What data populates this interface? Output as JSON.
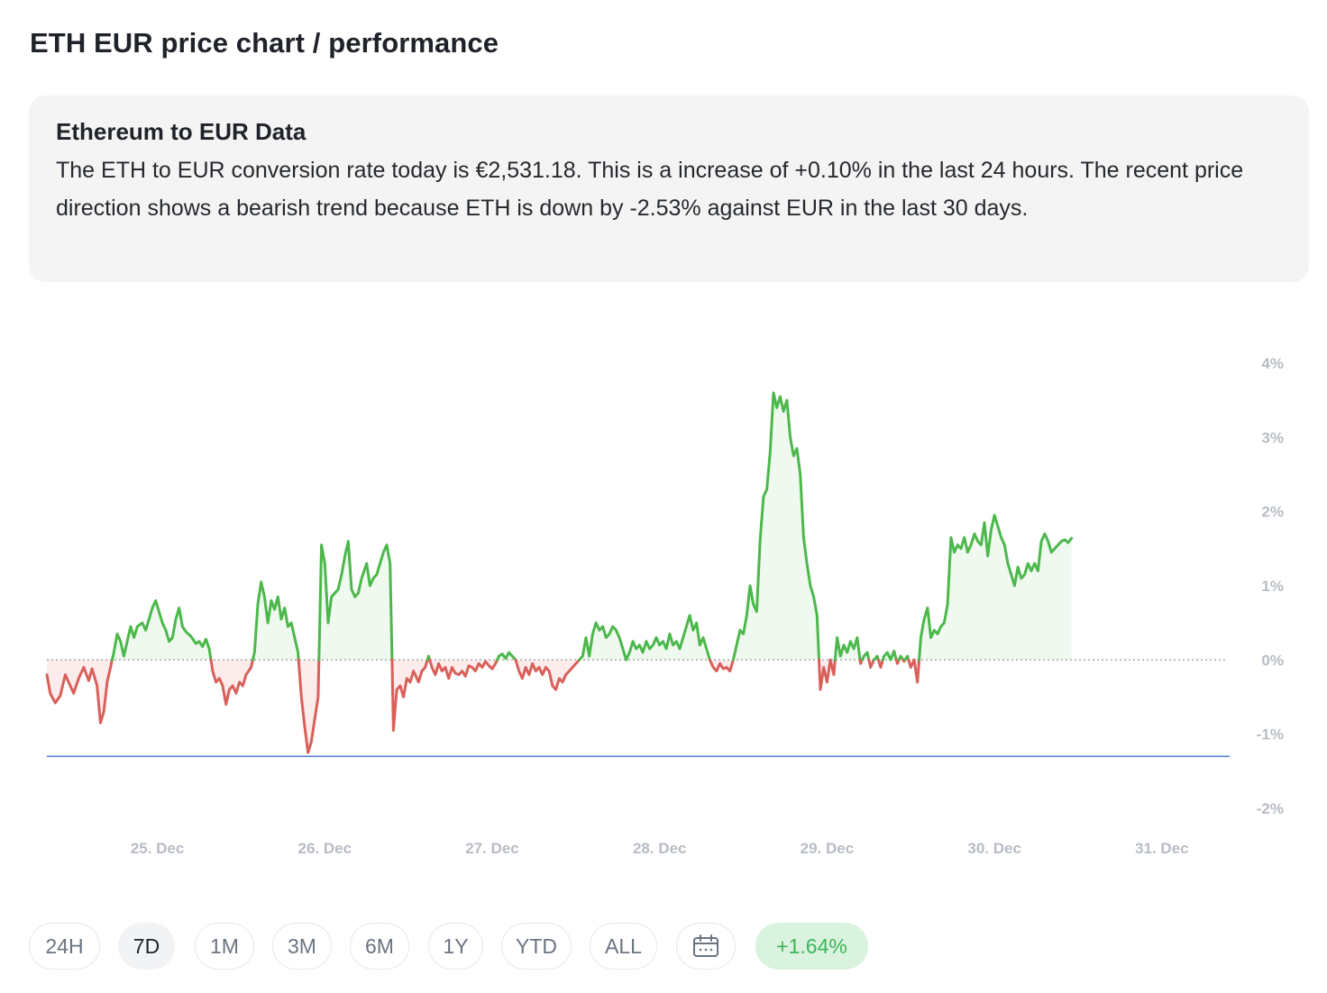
{
  "page_title": "ETH EUR price chart / performance",
  "info": {
    "title": "Ethereum to EUR Data",
    "text": "The ETH to EUR conversion rate today is €2,531.18. This is a increase of +0.10% in the last 24 hours. The recent price direction shows a bearish trend because ETH is down by -2.53% against EUR in the last 30 days."
  },
  "range_buttons": [
    {
      "label": "24H",
      "active": false
    },
    {
      "label": "7D",
      "active": true
    },
    {
      "label": "1M",
      "active": false
    },
    {
      "label": "3M",
      "active": false
    },
    {
      "label": "6M",
      "active": false
    },
    {
      "label": "1Y",
      "active": false
    },
    {
      "label": "YTD",
      "active": false
    },
    {
      "label": "ALL",
      "active": false
    }
  ],
  "calendar_icon": "calendar-icon",
  "change_badge": "+1.64%",
  "colors": {
    "positive": "#4cb84c",
    "negative": "#d9605a",
    "reference": "#4a77d4",
    "positive_fill": "#e9f7e9",
    "negative_fill": "#fbe5e4"
  },
  "chart_data": {
    "type": "area",
    "ylim": [
      -2,
      4
    ],
    "y_ticks": [
      "4%",
      "3%",
      "2%",
      "1%",
      "0%",
      "-1%",
      "-2%"
    ],
    "y_tick_values": [
      4,
      3,
      2,
      1,
      0,
      -1,
      -2
    ],
    "x_ticks": [
      "25. Dec",
      "26. Dec",
      "27. Dec",
      "28. Dec",
      "29. Dec",
      "30. Dec",
      "31. Dec"
    ],
    "x_tick_days": [
      1,
      2,
      3,
      4,
      5,
      6,
      7
    ],
    "xlim_days": [
      0.34,
      7.34
    ],
    "reference_value": -1.3,
    "series": [
      {
        "points": [
          [
            0.34,
            -0.2
          ],
          [
            0.36,
            -0.45
          ],
          [
            0.39,
            -0.58
          ],
          [
            0.42,
            -0.48
          ],
          [
            0.45,
            -0.2
          ],
          [
            0.47,
            -0.3
          ],
          [
            0.5,
            -0.45
          ],
          [
            0.53,
            -0.25
          ],
          [
            0.56,
            -0.1
          ],
          [
            0.59,
            -0.28
          ],
          [
            0.61,
            -0.12
          ],
          [
            0.64,
            -0.35
          ],
          [
            0.66,
            -0.85
          ],
          [
            0.68,
            -0.7
          ],
          [
            0.7,
            -0.3
          ],
          [
            0.72,
            -0.1
          ],
          [
            0.74,
            0.1
          ],
          [
            0.76,
            0.35
          ],
          [
            0.78,
            0.25
          ],
          [
            0.8,
            0.05
          ],
          [
            0.82,
            0.25
          ],
          [
            0.84,
            0.45
          ],
          [
            0.86,
            0.3
          ],
          [
            0.88,
            0.45
          ],
          [
            0.91,
            0.5
          ],
          [
            0.93,
            0.4
          ],
          [
            0.95,
            0.55
          ],
          [
            0.97,
            0.7
          ],
          [
            0.99,
            0.8
          ],
          [
            1.01,
            0.65
          ],
          [
            1.03,
            0.5
          ],
          [
            1.05,
            0.4
          ],
          [
            1.07,
            0.25
          ],
          [
            1.09,
            0.3
          ],
          [
            1.11,
            0.55
          ],
          [
            1.13,
            0.7
          ],
          [
            1.15,
            0.45
          ],
          [
            1.17,
            0.38
          ],
          [
            1.2,
            0.32
          ],
          [
            1.23,
            0.22
          ],
          [
            1.25,
            0.25
          ],
          [
            1.27,
            0.18
          ],
          [
            1.29,
            0.28
          ],
          [
            1.31,
            0.15
          ],
          [
            1.33,
            -0.15
          ],
          [
            1.35,
            -0.3
          ],
          [
            1.37,
            -0.25
          ],
          [
            1.39,
            -0.35
          ],
          [
            1.41,
            -0.6
          ],
          [
            1.43,
            -0.4
          ],
          [
            1.45,
            -0.35
          ],
          [
            1.47,
            -0.45
          ],
          [
            1.49,
            -0.3
          ],
          [
            1.51,
            -0.35
          ],
          [
            1.53,
            -0.2
          ],
          [
            1.56,
            -0.1
          ],
          [
            1.58,
            0.1
          ],
          [
            1.6,
            0.75
          ],
          [
            1.62,
            1.05
          ],
          [
            1.64,
            0.85
          ],
          [
            1.66,
            0.5
          ],
          [
            1.68,
            0.8
          ],
          [
            1.7,
            0.68
          ],
          [
            1.72,
            0.85
          ],
          [
            1.74,
            0.55
          ],
          [
            1.76,
            0.7
          ],
          [
            1.78,
            0.45
          ],
          [
            1.8,
            0.5
          ],
          [
            1.82,
            0.3
          ],
          [
            1.84,
            0.1
          ],
          [
            1.86,
            -0.5
          ],
          [
            1.88,
            -0.9
          ],
          [
            1.9,
            -1.25
          ],
          [
            1.92,
            -1.1
          ],
          [
            1.94,
            -0.8
          ],
          [
            1.96,
            -0.5
          ],
          [
            1.98,
            1.55
          ],
          [
            2.0,
            1.3
          ],
          [
            2.02,
            0.5
          ],
          [
            2.04,
            0.85
          ],
          [
            2.06,
            0.9
          ],
          [
            2.08,
            0.95
          ],
          [
            2.1,
            1.15
          ],
          [
            2.12,
            1.4
          ],
          [
            2.14,
            1.6
          ],
          [
            2.16,
            0.95
          ],
          [
            2.18,
            0.85
          ],
          [
            2.2,
            0.9
          ],
          [
            2.22,
            1.1
          ],
          [
            2.25,
            1.3
          ],
          [
            2.27,
            1.0
          ],
          [
            2.29,
            1.1
          ],
          [
            2.31,
            1.15
          ],
          [
            2.33,
            1.3
          ],
          [
            2.35,
            1.45
          ],
          [
            2.37,
            1.55
          ],
          [
            2.39,
            1.3
          ],
          [
            2.41,
            -0.95
          ],
          [
            2.43,
            -0.4
          ],
          [
            2.45,
            -0.35
          ],
          [
            2.47,
            -0.5
          ],
          [
            2.49,
            -0.25
          ],
          [
            2.51,
            -0.3
          ],
          [
            2.53,
            -0.15
          ],
          [
            2.56,
            -0.3
          ],
          [
            2.58,
            -0.15
          ],
          [
            2.6,
            -0.1
          ],
          [
            2.62,
            0.05
          ],
          [
            2.64,
            -0.1
          ],
          [
            2.66,
            -0.2
          ],
          [
            2.68,
            -0.05
          ],
          [
            2.7,
            -0.15
          ],
          [
            2.72,
            -0.1
          ],
          [
            2.74,
            -0.25
          ],
          [
            2.76,
            -0.1
          ],
          [
            2.78,
            -0.18
          ],
          [
            2.8,
            -0.2
          ],
          [
            2.82,
            -0.15
          ],
          [
            2.84,
            -0.22
          ],
          [
            2.86,
            -0.08
          ],
          [
            2.88,
            -0.1
          ],
          [
            2.9,
            -0.15
          ],
          [
            2.92,
            -0.05
          ],
          [
            2.94,
            -0.1
          ],
          [
            2.96,
            -0.02
          ],
          [
            2.98,
            -0.08
          ],
          [
            3.0,
            -0.12
          ],
          [
            3.02,
            -0.05
          ],
          [
            3.04,
            0.05
          ],
          [
            3.06,
            0.08
          ],
          [
            3.08,
            0.02
          ],
          [
            3.1,
            0.1
          ],
          [
            3.12,
            0.05
          ],
          [
            3.14,
            0.0
          ],
          [
            3.16,
            -0.15
          ],
          [
            3.18,
            -0.25
          ],
          [
            3.2,
            -0.1
          ],
          [
            3.22,
            -0.2
          ],
          [
            3.24,
            -0.05
          ],
          [
            3.26,
            -0.15
          ],
          [
            3.28,
            -0.1
          ],
          [
            3.3,
            -0.2
          ],
          [
            3.32,
            -0.1
          ],
          [
            3.34,
            -0.15
          ],
          [
            3.36,
            -0.35
          ],
          [
            3.38,
            -0.4
          ],
          [
            3.4,
            -0.25
          ],
          [
            3.42,
            -0.3
          ],
          [
            3.44,
            -0.2
          ],
          [
            3.46,
            -0.15
          ],
          [
            3.48,
            -0.1
          ],
          [
            3.5,
            -0.05
          ],
          [
            3.52,
            0.0
          ],
          [
            3.54,
            0.05
          ],
          [
            3.56,
            0.3
          ],
          [
            3.58,
            0.05
          ],
          [
            3.6,
            0.35
          ],
          [
            3.62,
            0.5
          ],
          [
            3.64,
            0.4
          ],
          [
            3.66,
            0.45
          ],
          [
            3.68,
            0.3
          ],
          [
            3.7,
            0.35
          ],
          [
            3.72,
            0.45
          ],
          [
            3.74,
            0.4
          ],
          [
            3.76,
            0.3
          ],
          [
            3.78,
            0.15
          ],
          [
            3.8,
            0.0
          ],
          [
            3.82,
            0.1
          ],
          [
            3.84,
            0.25
          ],
          [
            3.86,
            0.15
          ],
          [
            3.88,
            0.2
          ],
          [
            3.9,
            0.1
          ],
          [
            3.92,
            0.25
          ],
          [
            3.94,
            0.15
          ],
          [
            3.96,
            0.2
          ],
          [
            3.98,
            0.3
          ],
          [
            4.0,
            0.2
          ],
          [
            4.02,
            0.25
          ],
          [
            4.04,
            0.15
          ],
          [
            4.06,
            0.35
          ],
          [
            4.08,
            0.2
          ],
          [
            4.1,
            0.25
          ],
          [
            4.12,
            0.15
          ],
          [
            4.14,
            0.3
          ],
          [
            4.16,
            0.45
          ],
          [
            4.18,
            0.6
          ],
          [
            4.2,
            0.4
          ],
          [
            4.22,
            0.5
          ],
          [
            4.24,
            0.2
          ],
          [
            4.26,
            0.3
          ],
          [
            4.28,
            0.15
          ],
          [
            4.3,
            0.0
          ],
          [
            4.32,
            -0.1
          ],
          [
            4.34,
            -0.15
          ],
          [
            4.36,
            -0.05
          ],
          [
            4.38,
            -0.12
          ],
          [
            4.4,
            -0.1
          ],
          [
            4.42,
            -0.15
          ],
          [
            4.44,
            0.0
          ],
          [
            4.46,
            0.2
          ],
          [
            4.48,
            0.4
          ],
          [
            4.5,
            0.35
          ],
          [
            4.52,
            0.6
          ],
          [
            4.54,
            1.0
          ],
          [
            4.56,
            0.75
          ],
          [
            4.58,
            0.65
          ],
          [
            4.6,
            1.6
          ],
          [
            4.62,
            2.2
          ],
          [
            4.64,
            2.3
          ],
          [
            4.66,
            2.8
          ],
          [
            4.68,
            3.6
          ],
          [
            4.7,
            3.4
          ],
          [
            4.72,
            3.55
          ],
          [
            4.74,
            3.35
          ],
          [
            4.76,
            3.5
          ],
          [
            4.78,
            3.0
          ],
          [
            4.8,
            2.75
          ],
          [
            4.82,
            2.85
          ],
          [
            4.84,
            2.5
          ],
          [
            4.86,
            1.65
          ],
          [
            4.88,
            1.3
          ],
          [
            4.9,
            1.0
          ],
          [
            4.92,
            0.85
          ],
          [
            4.94,
            0.6
          ],
          [
            4.96,
            -0.4
          ],
          [
            4.98,
            -0.1
          ],
          [
            5.0,
            -0.3
          ],
          [
            5.02,
            0.0
          ],
          [
            5.04,
            -0.2
          ],
          [
            5.06,
            0.3
          ],
          [
            5.08,
            0.05
          ],
          [
            5.1,
            0.2
          ],
          [
            5.12,
            0.1
          ],
          [
            5.14,
            0.25
          ],
          [
            5.16,
            0.15
          ],
          [
            5.18,
            0.3
          ],
          [
            5.2,
            -0.05
          ],
          [
            5.22,
            0.05
          ],
          [
            5.24,
            0.1
          ],
          [
            5.26,
            -0.1
          ],
          [
            5.28,
            0.0
          ],
          [
            5.3,
            0.05
          ],
          [
            5.32,
            -0.1
          ],
          [
            5.34,
            0.05
          ],
          [
            5.36,
            0.1
          ],
          [
            5.38,
            0.0
          ],
          [
            5.4,
            0.12
          ],
          [
            5.42,
            -0.05
          ],
          [
            5.44,
            0.05
          ],
          [
            5.46,
            -0.02
          ],
          [
            5.48,
            0.05
          ],
          [
            5.5,
            -0.1
          ],
          [
            5.52,
            0.0
          ],
          [
            5.54,
            -0.3
          ],
          [
            5.56,
            0.3
          ],
          [
            5.58,
            0.55
          ],
          [
            5.6,
            0.7
          ],
          [
            5.62,
            0.3
          ],
          [
            5.64,
            0.4
          ],
          [
            5.66,
            0.35
          ],
          [
            5.68,
            0.45
          ],
          [
            5.7,
            0.5
          ],
          [
            5.72,
            0.75
          ],
          [
            5.74,
            1.65
          ],
          [
            5.76,
            1.45
          ],
          [
            5.78,
            1.55
          ],
          [
            5.8,
            1.5
          ],
          [
            5.82,
            1.65
          ],
          [
            5.84,
            1.45
          ],
          [
            5.86,
            1.55
          ],
          [
            5.88,
            1.7
          ],
          [
            5.9,
            1.6
          ],
          [
            5.92,
            1.55
          ],
          [
            5.94,
            1.85
          ],
          [
            5.96,
            1.4
          ],
          [
            5.98,
            1.75
          ],
          [
            6.0,
            1.95
          ],
          [
            6.02,
            1.8
          ],
          [
            6.04,
            1.65
          ],
          [
            6.06,
            1.55
          ],
          [
            6.08,
            1.3
          ],
          [
            6.1,
            1.15
          ],
          [
            6.12,
            1.0
          ],
          [
            6.14,
            1.25
          ],
          [
            6.16,
            1.1
          ],
          [
            6.18,
            1.15
          ],
          [
            6.2,
            1.3
          ],
          [
            6.22,
            1.2
          ],
          [
            6.24,
            1.3
          ],
          [
            6.26,
            1.2
          ],
          [
            6.28,
            1.6
          ],
          [
            6.3,
            1.7
          ],
          [
            6.32,
            1.6
          ],
          [
            6.34,
            1.45
          ],
          [
            6.36,
            1.5
          ],
          [
            6.38,
            1.55
          ],
          [
            6.4,
            1.6
          ],
          [
            6.42,
            1.62
          ],
          [
            6.44,
            1.58
          ],
          [
            6.46,
            1.64
          ]
        ]
      }
    ]
  }
}
